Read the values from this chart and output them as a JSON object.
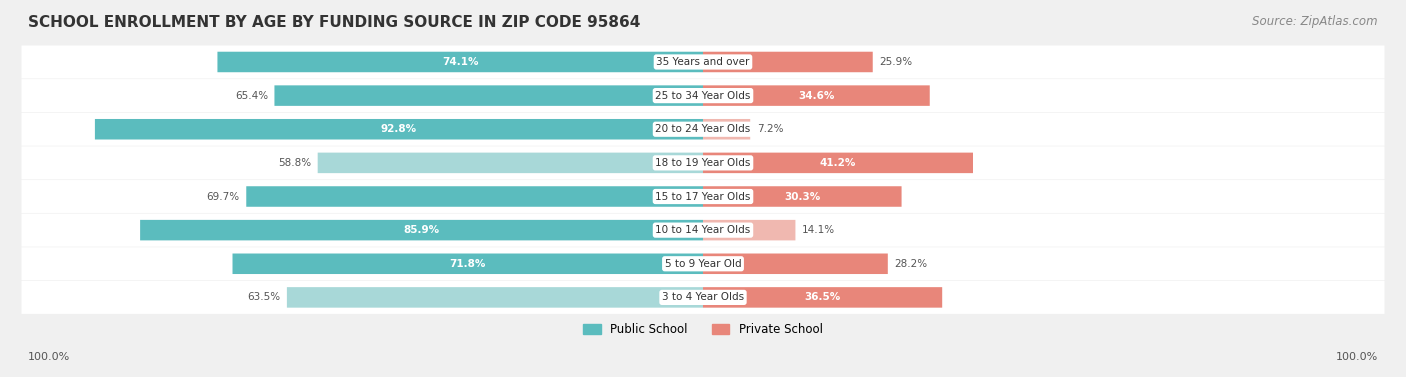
{
  "title": "SCHOOL ENROLLMENT BY AGE BY FUNDING SOURCE IN ZIP CODE 95864",
  "source": "Source: ZipAtlas.com",
  "categories": [
    "3 to 4 Year Olds",
    "5 to 9 Year Old",
    "10 to 14 Year Olds",
    "15 to 17 Year Olds",
    "18 to 19 Year Olds",
    "20 to 24 Year Olds",
    "25 to 34 Year Olds",
    "35 Years and over"
  ],
  "public_values": [
    63.5,
    71.8,
    85.9,
    69.7,
    58.8,
    92.8,
    65.4,
    74.1
  ],
  "private_values": [
    36.5,
    28.2,
    14.1,
    30.3,
    41.2,
    7.2,
    34.6,
    25.9
  ],
  "public_color": "#5bbcbe",
  "private_color": "#e8867a",
  "public_color_light": "#a8d8d8",
  "private_color_light": "#f0b8b0",
  "bg_color": "#f0f0f0",
  "bar_bg": "#e8e8e8",
  "label_x_left": "100.0%",
  "label_x_right": "100.0%",
  "title_fontsize": 11,
  "source_fontsize": 8.5,
  "bar_height": 0.6,
  "figsize": [
    14.06,
    3.77
  ]
}
